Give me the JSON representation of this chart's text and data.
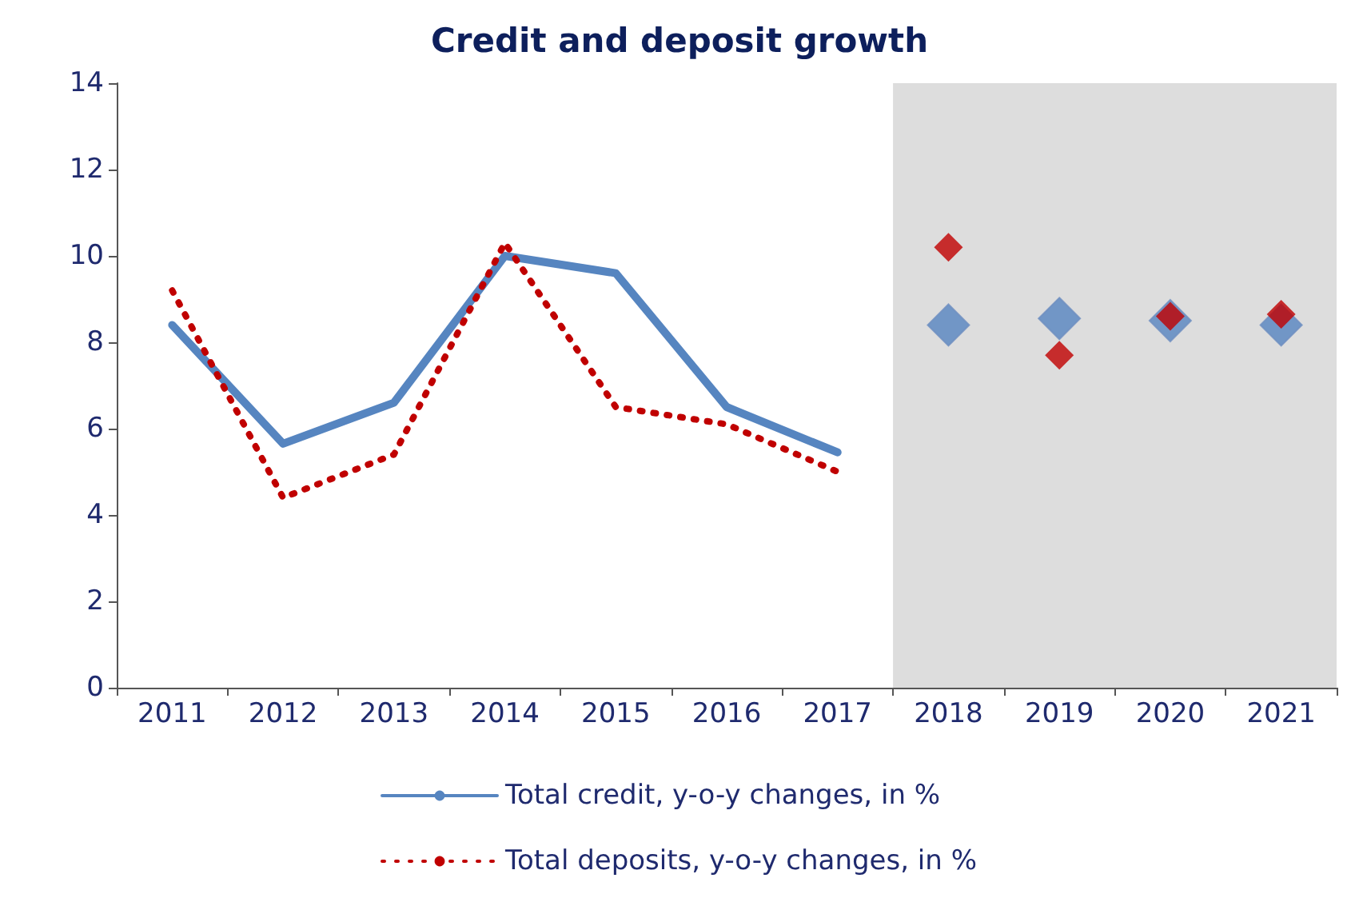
{
  "chart_data": {
    "type": "line",
    "title": "Credit and deposit growth",
    "categories": [
      "2011",
      "2012",
      "2013",
      "2014",
      "2015",
      "2016",
      "2017",
      "2018",
      "2019",
      "2020",
      "2021"
    ],
    "series": [
      {
        "name": "Total credit, y-o-y changes, in %",
        "color": "#5685c0",
        "line_style": "solid",
        "marker": "none",
        "values": [
          8.4,
          5.65,
          6.6,
          10.0,
          9.6,
          6.5,
          5.45,
          null,
          null,
          null,
          null
        ]
      },
      {
        "name": "Total deposits, y-o-y changes, in %",
        "color": "#c00000",
        "line_style": "dotted",
        "marker": "none",
        "values": [
          9.2,
          4.4,
          5.4,
          10.3,
          6.5,
          6.1,
          5.0,
          null,
          null,
          null,
          null
        ]
      },
      {
        "type": "scatter",
        "color": "#5685c0",
        "marker": "diamond",
        "values": [
          null,
          null,
          null,
          null,
          null,
          null,
          null,
          8.4,
          8.55,
          8.5,
          8.4
        ]
      },
      {
        "type": "scatter",
        "color": "#c00000",
        "marker": "diamond",
        "values": [
          null,
          null,
          null,
          null,
          null,
          null,
          null,
          10.2,
          7.7,
          8.6,
          8.65
        ]
      }
    ],
    "ylim": [
      0,
      14
    ],
    "yticks": [
      0,
      2,
      4,
      6,
      8,
      10,
      12,
      14
    ],
    "grid": false,
    "legend": "bottom",
    "bands": [
      {
        "axis": "x",
        "from": "2018",
        "to": "2021",
        "color": "#dddddd"
      }
    ]
  }
}
